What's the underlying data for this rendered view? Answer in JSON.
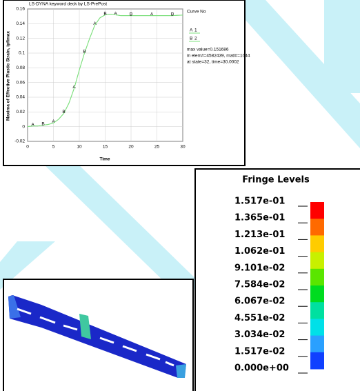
{
  "chart_data": {
    "type": "line",
    "title": "LS-DYNA keyword deck by LS-PrePost",
    "ylabel": "Maxima of Effective Plastic Strain, ipfimax",
    "xlabel": "Time",
    "x": [
      0,
      1,
      2,
      3,
      4,
      5,
      6,
      7,
      8,
      9,
      10,
      11,
      12,
      13,
      14,
      15,
      16,
      17,
      18,
      20,
      22,
      24,
      26,
      28,
      30
    ],
    "series": [
      {
        "name": "1",
        "marker": "A",
        "color": "#7ee07e",
        "values": [
          0,
          0.001,
          0.001,
          0.002,
          0.003,
          0.005,
          0.01,
          0.018,
          0.032,
          0.052,
          0.077,
          0.1,
          0.12,
          0.138,
          0.148,
          0.152,
          0.153,
          0.152,
          0.151,
          0.151,
          0.151,
          0.151,
          0.151,
          0.151,
          0.1517
        ]
      },
      {
        "name": "2",
        "marker": "B",
        "color": "#7ee07e",
        "values": [
          0,
          0.001,
          0.001,
          0.002,
          0.003,
          0.005,
          0.01,
          0.018,
          0.032,
          0.052,
          0.077,
          0.1,
          0.12,
          0.138,
          0.148,
          0.152,
          0.153,
          0.152,
          0.151,
          0.151,
          0.151,
          0.151,
          0.151,
          0.151,
          0.1517
        ]
      }
    ],
    "legend_title": "Curve No",
    "annotations": [
      "max value=0.151686",
      "in elem#=4582439, matl#=1044",
      "at state=32, time=30.0002"
    ],
    "xlim": [
      0,
      30
    ],
    "xticks": [
      0,
      5,
      10,
      15,
      20,
      25,
      30
    ],
    "ylim": [
      -0.02,
      0.16
    ],
    "yticks": [
      -0.02,
      0,
      0.02,
      0.04,
      0.06,
      0.08,
      0.1,
      0.12,
      0.14,
      0.16
    ],
    "grid": true
  },
  "fringe": {
    "title": "Fringe Levels",
    "levels": [
      {
        "value": 0.1517,
        "label": "1.517e-01"
      },
      {
        "value": 0.1365,
        "label": "1.365e-01"
      },
      {
        "value": 0.1213,
        "label": "1.213e-01"
      },
      {
        "value": 0.1062,
        "label": "1.062e-01"
      },
      {
        "value": 0.09101,
        "label": "9.101e-02"
      },
      {
        "value": 0.07584,
        "label": "7.584e-02"
      },
      {
        "value": 0.06067,
        "label": "6.067e-02"
      },
      {
        "value": 0.04551,
        "label": "4.551e-02"
      },
      {
        "value": 0.03034,
        "label": "3.034e-02"
      },
      {
        "value": 0.01517,
        "label": "1.517e-02"
      },
      {
        "value": 0,
        "label": "0.000e+00"
      }
    ],
    "colors": [
      "#ff0000",
      "#ff6a00",
      "#ffcc00",
      "#c8f000",
      "#5ae600",
      "#00dc20",
      "#00e0a0",
      "#00e0e8",
      "#2aa0ff",
      "#1040ff"
    ]
  }
}
